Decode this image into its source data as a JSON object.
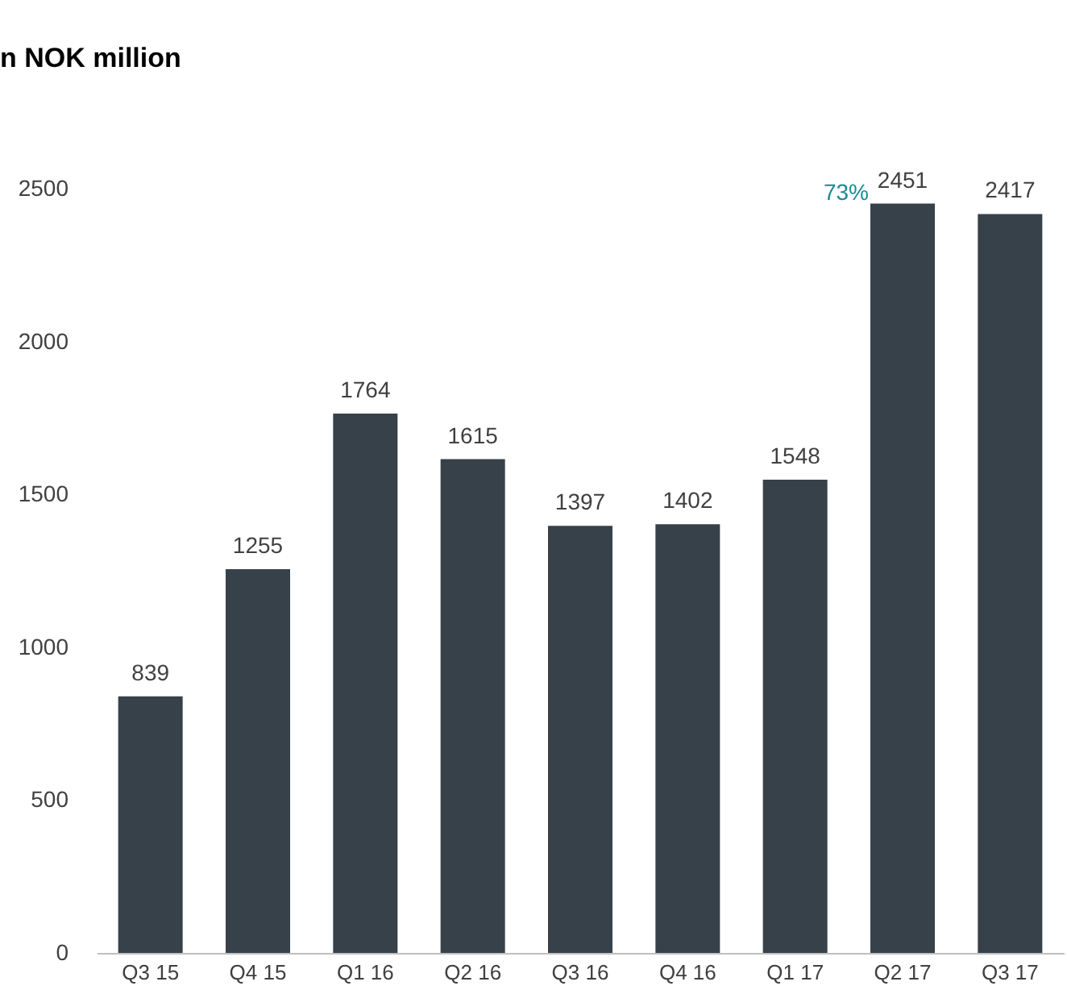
{
  "chart_data": {
    "type": "bar",
    "subtitle": "n NOK million",
    "categories": [
      "Q3 15",
      "Q4 15",
      "Q1 16",
      "Q2 16",
      "Q3 16",
      "Q4 16",
      "Q1 17",
      "Q2 17",
      "Q3 17"
    ],
    "values": [
      839,
      1255,
      1764,
      1615,
      1397,
      1402,
      1548,
      2451,
      2417
    ],
    "color": "#37414a",
    "data_labels": true,
    "ylim": [
      0,
      2500
    ],
    "yticks": [
      0,
      500,
      1000,
      1500,
      2000,
      2500
    ],
    "grid": false,
    "annotations": [
      "73%"
    ]
  }
}
